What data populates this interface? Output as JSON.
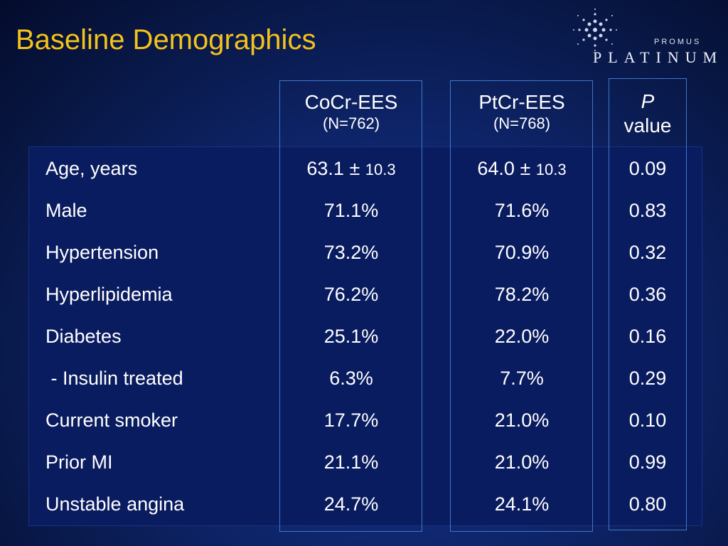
{
  "slide": {
    "title": "Baseline Demographics"
  },
  "logo": {
    "brand_small": "PROMUS",
    "brand_large": "PLATINUM"
  },
  "table": {
    "columns": [
      {
        "name": "CoCr-EES",
        "n": "(N=762)"
      },
      {
        "name": "PtCr-EES",
        "n": "(N=768)"
      }
    ],
    "pvalue_header": {
      "italic": "P",
      "rest": "value"
    },
    "rows": [
      {
        "label": "Age, years",
        "a_main": "63.1 ± ",
        "a_sd": "10.3",
        "b_main": "64.0 ± ",
        "b_sd": "10.3",
        "p": "0.09"
      },
      {
        "label": "Male",
        "a_main": "71.1%",
        "a_sd": "",
        "b_main": "71.6%",
        "b_sd": "",
        "p": "0.83"
      },
      {
        "label": "Hypertension",
        "a_main": "73.2%",
        "a_sd": "",
        "b_main": "70.9%",
        "b_sd": "",
        "p": "0.32"
      },
      {
        "label": "Hyperlipidemia",
        "a_main": "76.2%",
        "a_sd": "",
        "b_main": "78.2%",
        "b_sd": "",
        "p": "0.36"
      },
      {
        "label": "Diabetes",
        "a_main": "25.1%",
        "a_sd": "",
        "b_main": "22.0%",
        "b_sd": "",
        "p": "0.16"
      },
      {
        "label": " - Insulin treated",
        "a_main": "6.3%",
        "a_sd": "",
        "b_main": "7.7%",
        "b_sd": "",
        "p": "0.29"
      },
      {
        "label": "Current smoker",
        "a_main": "17.7%",
        "a_sd": "",
        "b_main": "21.0%",
        "b_sd": "",
        "p": "0.10"
      },
      {
        "label": "Prior MI",
        "a_main": "21.1%",
        "a_sd": "",
        "b_main": "21.0%",
        "b_sd": "",
        "p": "0.99"
      },
      {
        "label": "Unstable angina",
        "a_main": "24.7%",
        "a_sd": "",
        "b_main": "24.1%",
        "b_sd": "",
        "p": "0.80"
      }
    ]
  },
  "colors": {
    "title": "#f4c21b",
    "background": "#0e2468",
    "column_border": "#3e79c9"
  }
}
